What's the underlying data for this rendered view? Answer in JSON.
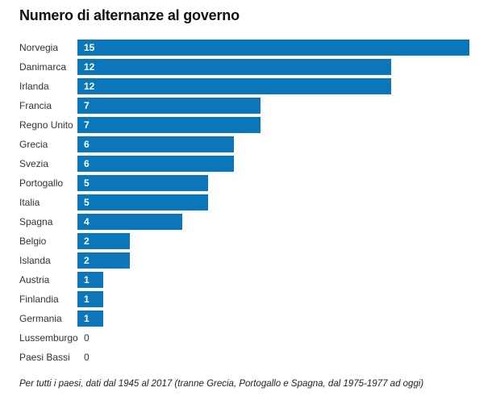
{
  "page": {
    "background": "#ffffff"
  },
  "header": {
    "title": "Numero di alternanze al governo"
  },
  "chart_data": {
    "type": "bar",
    "orientation": "horizontal",
    "title": "Numero di alternanze al governo",
    "categories": [
      "Norvegia",
      "Danimarca",
      "Irlanda",
      "Francia",
      "Regno Unito",
      "Grecia",
      "Svezia",
      "Portogallo",
      "Italia",
      "Spagna",
      "Belgio",
      "Islanda",
      "Austria",
      "Finlandia",
      "Germania",
      "Lussemburgo",
      "Paesi Bassi"
    ],
    "values": [
      15,
      12,
      12,
      7,
      7,
      6,
      6,
      5,
      5,
      4,
      2,
      2,
      1,
      1,
      1,
      0,
      0
    ],
    "xlabel": "",
    "ylabel": "",
    "xlim": [
      0,
      15
    ],
    "grid": false,
    "legend": false,
    "value_labels_shown": true,
    "bar_color": "#0b76b9",
    "note": "Per tutti i paesi, dati dal 1945 al 2017 (tranne Grecia, Portogallo e Spagna, dal 1975-1977 ad oggi)"
  },
  "colors": {
    "bar": "#0b76b9",
    "title_text": "#111111",
    "category_text": "#333333",
    "value_inside_bar": "#ffffff",
    "value_zero": "#333333",
    "note_text": "#222222"
  }
}
